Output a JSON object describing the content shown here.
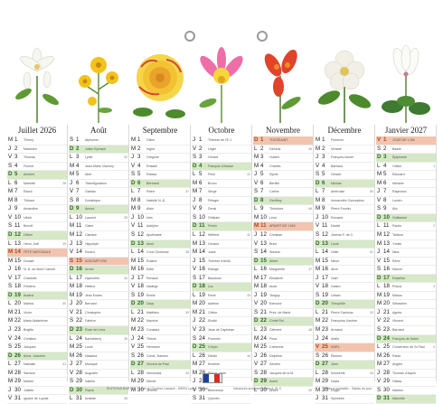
{
  "months": [
    {
      "title": "Juillet 2026",
      "days": [
        [
          "M",
          "1",
          "Thierry",
          ""
        ],
        [
          "J",
          "2",
          "Martinien",
          ""
        ],
        [
          "V",
          "3",
          "Thomas",
          ""
        ],
        [
          "S",
          "4",
          "Florent",
          ""
        ],
        [
          "D",
          "5",
          "Antoine",
          ""
        ],
        [
          "L",
          "6",
          "Mariette",
          "28"
        ],
        [
          "M",
          "7",
          "Raoul",
          ""
        ],
        [
          "M",
          "8",
          "Thibaut",
          ""
        ],
        [
          "J",
          "9",
          "Amandine",
          ""
        ],
        [
          "V",
          "10",
          "Ulrich",
          ""
        ],
        [
          "S",
          "11",
          "Benoît",
          ""
        ],
        [
          "D",
          "12",
          "Olivier",
          ""
        ],
        [
          "L",
          "13",
          "Henri, Joël",
          "29"
        ],
        [
          "M",
          "14",
          "FÊTE NATIONALE",
          ""
        ],
        [
          "M",
          "15",
          "Donald",
          ""
        ],
        [
          "J",
          "16",
          "N.-D. du Mont Carmel",
          ""
        ],
        [
          "V",
          "17",
          "Charlotte",
          ""
        ],
        [
          "S",
          "18",
          "Frédéric",
          ""
        ],
        [
          "D",
          "19",
          "Arsène",
          ""
        ],
        [
          "L",
          "20",
          "Marina",
          "30"
        ],
        [
          "M",
          "21",
          "Victor",
          ""
        ],
        [
          "M",
          "22",
          "Marie-Madeleine",
          ""
        ],
        [
          "J",
          "23",
          "Brigitte",
          ""
        ],
        [
          "V",
          "24",
          "Christine",
          ""
        ],
        [
          "S",
          "25",
          "Jacques",
          ""
        ],
        [
          "D",
          "26",
          "Anne, Joachim",
          ""
        ],
        [
          "L",
          "27",
          "Nathalie",
          "31"
        ],
        [
          "M",
          "28",
          "Samson",
          ""
        ],
        [
          "M",
          "29",
          "Marthe",
          ""
        ],
        [
          "J",
          "30",
          "Juliette",
          ""
        ],
        [
          "V",
          "31",
          "Ignace de Loyola",
          ""
        ]
      ]
    },
    {
      "title": "Août",
      "days": [
        [
          "S",
          "1",
          "Alphonse",
          ""
        ],
        [
          "D",
          "2",
          "Julien Eymard",
          ""
        ],
        [
          "L",
          "3",
          "Lydie",
          "32"
        ],
        [
          "M",
          "4",
          "Jean-Marie Vianney",
          ""
        ],
        [
          "M",
          "5",
          "Abel",
          ""
        ],
        [
          "J",
          "6",
          "Transfiguration",
          ""
        ],
        [
          "V",
          "7",
          "Gaétan",
          ""
        ],
        [
          "S",
          "8",
          "Dominique",
          ""
        ],
        [
          "D",
          "9",
          "Amour",
          ""
        ],
        [
          "L",
          "10",
          "Laurent",
          "33"
        ],
        [
          "M",
          "11",
          "Claire",
          ""
        ],
        [
          "M",
          "12",
          "Clarisse",
          ""
        ],
        [
          "J",
          "13",
          "Hippolyte",
          ""
        ],
        [
          "V",
          "14",
          "Evrard",
          ""
        ],
        [
          "S",
          "15",
          "ASSOMPTION",
          ""
        ],
        [
          "D",
          "16",
          "Armel",
          ""
        ],
        [
          "L",
          "17",
          "Hyacinthe",
          "34"
        ],
        [
          "M",
          "18",
          "Hélène",
          ""
        ],
        [
          "M",
          "19",
          "Jean Eudes",
          ""
        ],
        [
          "J",
          "20",
          "Bernard",
          ""
        ],
        [
          "V",
          "21",
          "Christophe",
          ""
        ],
        [
          "S",
          "22",
          "Fabrice",
          ""
        ],
        [
          "D",
          "23",
          "Rose de Lima",
          ""
        ],
        [
          "L",
          "24",
          "Barthélemy",
          "35"
        ],
        [
          "M",
          "25",
          "Louis",
          ""
        ],
        [
          "M",
          "26",
          "Natacha",
          ""
        ],
        [
          "J",
          "27",
          "Monique",
          ""
        ],
        [
          "V",
          "28",
          "Augustin",
          ""
        ],
        [
          "S",
          "29",
          "Sabine",
          ""
        ],
        [
          "D",
          "30",
          "Fiacre",
          ""
        ],
        [
          "L",
          "31",
          "Aristide",
          "36"
        ]
      ]
    },
    {
      "title": "Septembre",
      "days": [
        [
          "M",
          "1",
          "Gilles",
          ""
        ],
        [
          "M",
          "2",
          "Ingrid",
          ""
        ],
        [
          "J",
          "3",
          "Grégoire",
          ""
        ],
        [
          "V",
          "4",
          "Rosalie",
          ""
        ],
        [
          "S",
          "5",
          "Raïssa",
          ""
        ],
        [
          "D",
          "6",
          "Bertrand",
          ""
        ],
        [
          "L",
          "7",
          "Reine",
          "37"
        ],
        [
          "M",
          "8",
          "Nativité N.-D.",
          ""
        ],
        [
          "M",
          "9",
          "Alain",
          ""
        ],
        [
          "J",
          "10",
          "Inès",
          ""
        ],
        [
          "V",
          "11",
          "Adelphe",
          ""
        ],
        [
          "S",
          "12",
          "Apollinaire",
          ""
        ],
        [
          "D",
          "13",
          "Aimé",
          ""
        ],
        [
          "L",
          "14",
          "Croix Glorieuse",
          "38"
        ],
        [
          "M",
          "15",
          "Roland",
          ""
        ],
        [
          "M",
          "16",
          "Edith",
          ""
        ],
        [
          "J",
          "17",
          "Renaud",
          ""
        ],
        [
          "V",
          "18",
          "Nadège",
          ""
        ],
        [
          "S",
          "19",
          "Émilie",
          ""
        ],
        [
          "D",
          "20",
          "Davy",
          ""
        ],
        [
          "L",
          "21",
          "Matthieu",
          "39"
        ],
        [
          "M",
          "22",
          "Maurice",
          ""
        ],
        [
          "M",
          "23",
          "Constant",
          ""
        ],
        [
          "J",
          "24",
          "Thècle",
          ""
        ],
        [
          "V",
          "25",
          "Hermann",
          ""
        ],
        [
          "S",
          "26",
          "Côme, Damien",
          ""
        ],
        [
          "D",
          "27",
          "Vincent de Paul",
          ""
        ],
        [
          "L",
          "28",
          "Venceslas",
          "40"
        ],
        [
          "M",
          "29",
          "Michel",
          ""
        ],
        [
          "M",
          "30",
          "Jérôme",
          ""
        ]
      ]
    },
    {
      "title": "Octobre",
      "days": [
        [
          "J",
          "1",
          "Thérèse de l'E.J.",
          ""
        ],
        [
          "V",
          "2",
          "Léger",
          ""
        ],
        [
          "S",
          "3",
          "Gérard",
          ""
        ],
        [
          "D",
          "4",
          "François d'Assise",
          ""
        ],
        [
          "L",
          "5",
          "Fleur",
          "41"
        ],
        [
          "M",
          "6",
          "Bruno",
          ""
        ],
        [
          "M",
          "7",
          "Serge",
          ""
        ],
        [
          "J",
          "8",
          "Pélagie",
          ""
        ],
        [
          "V",
          "9",
          "Denis",
          ""
        ],
        [
          "S",
          "10",
          "Ghislain",
          ""
        ],
        [
          "D",
          "11",
          "Firmin",
          ""
        ],
        [
          "L",
          "12",
          "Wilfried",
          "42"
        ],
        [
          "M",
          "13",
          "Géraud",
          ""
        ],
        [
          "M",
          "14",
          "Juste",
          ""
        ],
        [
          "J",
          "15",
          "Thérèse d'Avila",
          ""
        ],
        [
          "V",
          "16",
          "Edwige",
          ""
        ],
        [
          "S",
          "17",
          "Baudouin",
          ""
        ],
        [
          "D",
          "18",
          "Luc",
          ""
        ],
        [
          "L",
          "19",
          "René",
          "43"
        ],
        [
          "M",
          "20",
          "Adeline",
          ""
        ],
        [
          "M",
          "21",
          "Céline",
          ""
        ],
        [
          "J",
          "22",
          "Elodie",
          ""
        ],
        [
          "V",
          "23",
          "Jean de Capistran",
          ""
        ],
        [
          "S",
          "24",
          "Florentin",
          ""
        ],
        [
          "D",
          "25",
          "Crépin",
          ""
        ],
        [
          "L",
          "26",
          "Dimitri",
          "44"
        ],
        [
          "M",
          "27",
          "Emeline",
          ""
        ],
        [
          "M",
          "28",
          "Simon, Jude",
          ""
        ],
        [
          "J",
          "29",
          "Narcisse",
          ""
        ],
        [
          "V",
          "30",
          "Bienvenue",
          ""
        ],
        [
          "S",
          "31",
          "Quentin",
          ""
        ]
      ]
    },
    {
      "title": "Novembre",
      "days": [
        [
          "D",
          "1",
          "TOUSSAINT",
          ""
        ],
        [
          "L",
          "2",
          "Défunts",
          "45"
        ],
        [
          "M",
          "3",
          "Hubert",
          ""
        ],
        [
          "M",
          "4",
          "Charles",
          ""
        ],
        [
          "J",
          "5",
          "Sylvie",
          ""
        ],
        [
          "V",
          "6",
          "Bertille",
          ""
        ],
        [
          "S",
          "7",
          "Carine",
          ""
        ],
        [
          "D",
          "8",
          "Geoffroy",
          ""
        ],
        [
          "L",
          "9",
          "Théodore",
          "46"
        ],
        [
          "M",
          "10",
          "Léon",
          ""
        ],
        [
          "M",
          "11",
          "ARMISTICE 1918",
          ""
        ],
        [
          "J",
          "12",
          "Christian",
          ""
        ],
        [
          "V",
          "13",
          "Brice",
          ""
        ],
        [
          "S",
          "14",
          "Sidoine",
          ""
        ],
        [
          "D",
          "15",
          "Albert",
          ""
        ],
        [
          "L",
          "16",
          "Marguerite",
          "47"
        ],
        [
          "M",
          "17",
          "Elisabeth",
          ""
        ],
        [
          "M",
          "18",
          "Aude",
          ""
        ],
        [
          "J",
          "19",
          "Tanguy",
          ""
        ],
        [
          "V",
          "20",
          "Edmond",
          ""
        ],
        [
          "S",
          "21",
          "Prés. de Marie",
          ""
        ],
        [
          "D",
          "22",
          "Christ Roi",
          ""
        ],
        [
          "L",
          "23",
          "Clément",
          "48"
        ],
        [
          "M",
          "24",
          "Flora",
          ""
        ],
        [
          "M",
          "25",
          "Catherine",
          ""
        ],
        [
          "J",
          "26",
          "Delphine",
          ""
        ],
        [
          "V",
          "27",
          "Séverin",
          ""
        ],
        [
          "S",
          "28",
          "Jacques de la M.",
          ""
        ],
        [
          "D",
          "29",
          "Avent",
          ""
        ],
        [
          "L",
          "30",
          "André",
          "49"
        ]
      ]
    },
    {
      "title": "Décembre",
      "days": [
        [
          "M",
          "1",
          "Florence",
          ""
        ],
        [
          "M",
          "2",
          "Viviane",
          ""
        ],
        [
          "J",
          "3",
          "François-Xavier",
          ""
        ],
        [
          "V",
          "4",
          "Barbara",
          ""
        ],
        [
          "S",
          "5",
          "Gérald",
          ""
        ],
        [
          "D",
          "6",
          "Nicolas",
          ""
        ],
        [
          "L",
          "7",
          "Ambroise",
          "50"
        ],
        [
          "M",
          "8",
          "Immaculée Conception",
          ""
        ],
        [
          "M",
          "9",
          "Pierre Fourier",
          ""
        ],
        [
          "J",
          "10",
          "Romaric",
          ""
        ],
        [
          "V",
          "11",
          "Daniel",
          ""
        ],
        [
          "S",
          "12",
          "Jeanne-F. de C.",
          ""
        ],
        [
          "D",
          "13",
          "Lucie",
          ""
        ],
        [
          "L",
          "14",
          "Odile",
          "51"
        ],
        [
          "M",
          "15",
          "Ninon",
          ""
        ],
        [
          "M",
          "16",
          "Alice",
          ""
        ],
        [
          "J",
          "17",
          "Gaël",
          ""
        ],
        [
          "V",
          "18",
          "Gatien",
          ""
        ],
        [
          "S",
          "19",
          "Urbain",
          ""
        ],
        [
          "D",
          "20",
          "Théophile",
          ""
        ],
        [
          "L",
          "21",
          "Pierre Canisius",
          "52"
        ],
        [
          "M",
          "22",
          "Françoise-Xavière",
          ""
        ],
        [
          "M",
          "23",
          "Armand",
          ""
        ],
        [
          "J",
          "24",
          "Adèle",
          ""
        ],
        [
          "V",
          "25",
          "NOËL",
          ""
        ],
        [
          "S",
          "26",
          "Étienne",
          ""
        ],
        [
          "D",
          "27",
          "Jean",
          ""
        ],
        [
          "L",
          "28",
          "Innocents",
          "53"
        ],
        [
          "M",
          "29",
          "David",
          ""
        ],
        [
          "M",
          "30",
          "Roger",
          ""
        ],
        [
          "J",
          "31",
          "Sylvestre",
          ""
        ]
      ]
    },
    {
      "title": "Janvier 2027",
      "days": [
        [
          "V",
          "1",
          "JOUR DE L'AN",
          ""
        ],
        [
          "S",
          "2",
          "Basile",
          ""
        ],
        [
          "D",
          "3",
          "Épiphanie",
          ""
        ],
        [
          "L",
          "4",
          "Odilon",
          "1"
        ],
        [
          "M",
          "5",
          "Édouard",
          ""
        ],
        [
          "M",
          "6",
          "Mélaine",
          ""
        ],
        [
          "J",
          "7",
          "Raymond",
          ""
        ],
        [
          "V",
          "8",
          "Lucien",
          ""
        ],
        [
          "S",
          "9",
          "Alix",
          ""
        ],
        [
          "D",
          "10",
          "Guillaume",
          ""
        ],
        [
          "L",
          "11",
          "Paulin",
          "2"
        ],
        [
          "M",
          "12",
          "Tatiana",
          ""
        ],
        [
          "M",
          "13",
          "Yvette",
          ""
        ],
        [
          "J",
          "14",
          "Nina",
          ""
        ],
        [
          "V",
          "15",
          "Rémi",
          ""
        ],
        [
          "S",
          "16",
          "Marcel",
          ""
        ],
        [
          "D",
          "17",
          "Roseline",
          ""
        ],
        [
          "L",
          "18",
          "Prisca",
          "3"
        ],
        [
          "M",
          "19",
          "Marius",
          ""
        ],
        [
          "M",
          "20",
          "Sébastien",
          ""
        ],
        [
          "J",
          "21",
          "Agnès",
          ""
        ],
        [
          "V",
          "22",
          "Vincent",
          ""
        ],
        [
          "S",
          "23",
          "Barnard",
          ""
        ],
        [
          "D",
          "24",
          "François de Sales",
          ""
        ],
        [
          "L",
          "25",
          "Conversion de St Paul",
          "4"
        ],
        [
          "M",
          "26",
          "Paule",
          ""
        ],
        [
          "M",
          "27",
          "Angèle",
          ""
        ],
        [
          "J",
          "28",
          "Thomas d'Aquin",
          ""
        ],
        [
          "V",
          "29",
          "Gildas",
          ""
        ],
        [
          "S",
          "30",
          "Martine",
          ""
        ],
        [
          "D",
          "31",
          "Marcelle",
          ""
        ]
      ]
    }
  ],
  "holidays": [
    "Juillet 2026|14",
    "Août|15",
    "Novembre|1",
    "Novembre|11",
    "Décembre|25",
    "Janvier 2027|1"
  ],
  "footer": {
    "publisher": "ÉDITIONS BARTH - 73 rue du Docteur Lamaze - 69003 Lyon - France",
    "logo_label": "RÉPUBLIQUE FRANÇAISE",
    "seasons": "Vacances scolaires zones A, B, C",
    "note": "Fêtes à souhaiter - Saints du jour"
  },
  "colors": {
    "sunday": "#d6e8c7",
    "holiday": "#f2c4ae"
  },
  "flower_icons": [
    "white-lily-icon",
    "yellow-daisy-icon",
    "yellow-rose-icon",
    "columbine-icon",
    "red-amaryllis-icon",
    "white-hellebore-icon",
    "white-cyclamen-icon"
  ]
}
